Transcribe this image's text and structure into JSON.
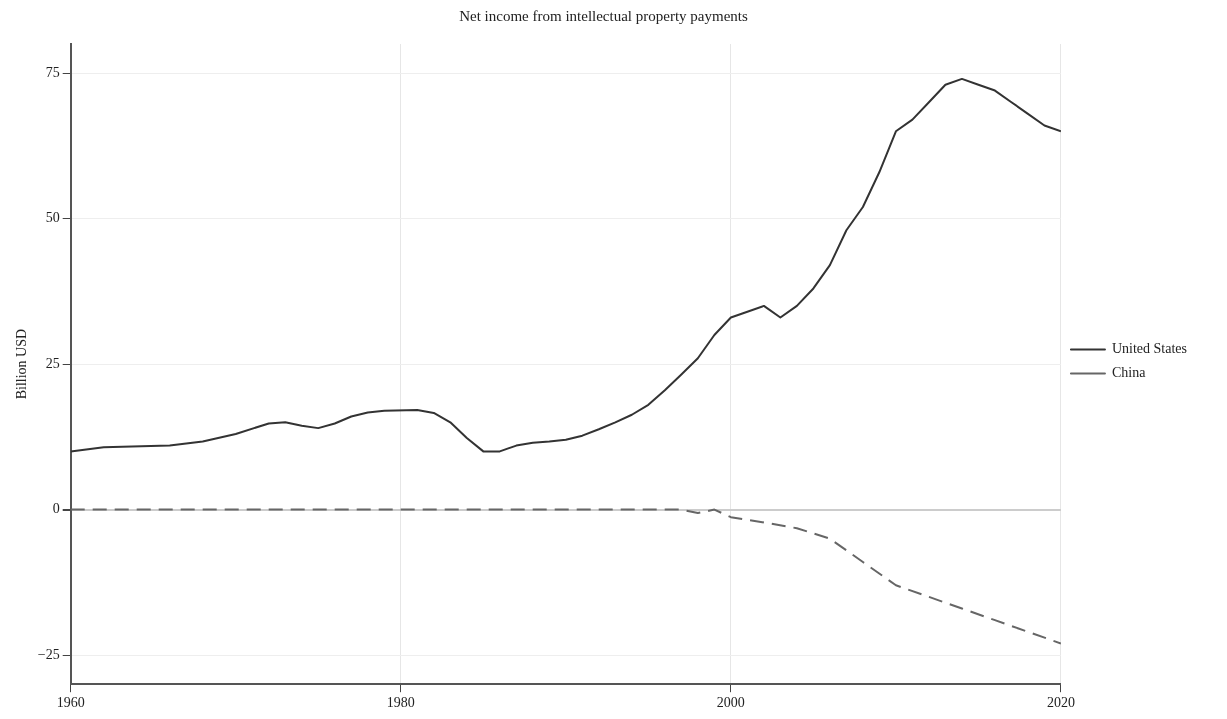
{
  "chart_data": {
    "type": "line",
    "title": "Net income from intellectual property payments",
    "ylabel": "Billion USD",
    "xlim": [
      1960,
      2020
    ],
    "xticks": [
      1960,
      1980,
      2000,
      2020
    ],
    "ylim": [
      -30,
      80
    ],
    "yticks": [
      -25,
      0,
      25,
      50,
      75
    ],
    "grid": true,
    "legend": "right",
    "marker": "none",
    "series": [
      {
        "name": "United States",
        "color": "#333333",
        "line_style": "solid",
        "x": [
          1960,
          1962,
          1966,
          1968,
          1970,
          1972,
          1973,
          1974,
          1975,
          1976,
          1977,
          1978,
          1979,
          1981,
          1982,
          1983,
          1984,
          1985,
          1986,
          1987,
          1988,
          1989,
          1990,
          1991,
          1992,
          1993,
          1994,
          1995,
          1996,
          1997,
          1998,
          1999,
          2000,
          2001,
          2002,
          2003,
          2004,
          2005,
          2006,
          2007,
          2008,
          2009,
          2010,
          2011,
          2012,
          2013,
          2014,
          2015,
          2016,
          2017,
          2018,
          2019,
          2020
        ],
        "values": [
          10,
          10.7,
          11,
          11.7,
          13,
          14.8,
          15,
          14.4,
          14,
          14.8,
          16,
          16.7,
          17,
          17.1,
          16.6,
          15,
          12.3,
          10,
          10,
          11,
          11.5,
          11.7,
          12,
          12.7,
          13.8,
          15,
          16.3,
          18,
          20.5,
          23.2,
          26,
          30,
          33,
          34,
          35,
          33,
          35,
          38,
          42,
          48,
          52,
          58,
          65,
          67,
          70,
          73,
          74,
          73,
          72,
          70,
          68,
          66,
          65
        ]
      },
      {
        "name": "China",
        "color": "#666666",
        "line_style": "dashed",
        "x": [
          1960,
          1997,
          1998,
          1999,
          2000,
          2002,
          2004,
          2006,
          2008,
          2010,
          2012,
          2014,
          2016,
          2018,
          2020
        ],
        "values": [
          0,
          0,
          -0.6,
          0,
          -1.3,
          -2.2,
          -3.2,
          -5,
          -9,
          -13,
          -15,
          -17,
          -19,
          -21,
          -23
        ]
      }
    ]
  }
}
